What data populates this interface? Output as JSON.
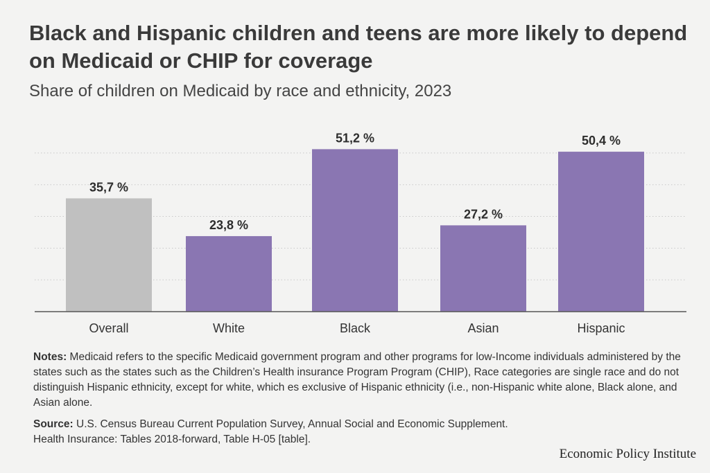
{
  "chart_data": {
    "type": "bar",
    "title": "Black and Hispanic children and teens are more likely to depend on Medicaid or CHIP for coverage",
    "subtitle": "Share of children on Medicaid by race and ethnicity, 2023",
    "categories": [
      "Overall",
      "White",
      "Black",
      "Asian",
      "Hispanic"
    ],
    "values": [
      35.7,
      23.8,
      51.2,
      27.2,
      50.4
    ],
    "value_labels": [
      "35,7 %",
      "23,8 %",
      "51,2 %",
      "27,2 %",
      "50,4 %"
    ],
    "ylim": [
      0,
      55
    ],
    "grid": true,
    "xlabel": "",
    "ylabel": "",
    "colors": {
      "overall": "#c0c0c0",
      "groups": "#8a76b2",
      "gridline": "#c8c8c8",
      "axis": "#555555"
    }
  },
  "notes": {
    "label": "Notes:",
    "text": " Medicaid refers to the specific Medicaid government program and other programs for low-Income individuals administered by the states such as the states such as the Children’s Health insurance Program Program (CHIP), Race categories are single race and do not distinguish Hispanic ethnicity, except for white, which es exclusive of Hispanic ethnicity (i.e., non-Hispanic white alone, Black alone, and Asian alone."
  },
  "source": {
    "label": "Source:",
    "line1": " U.S. Census Bureau Current Population Survey, Annual Social and Economic Supplement.",
    "line2": "Health Insurance: Tables 2018-forward, Table H-05 [table]."
  },
  "brand": "Economic Policy Institute"
}
